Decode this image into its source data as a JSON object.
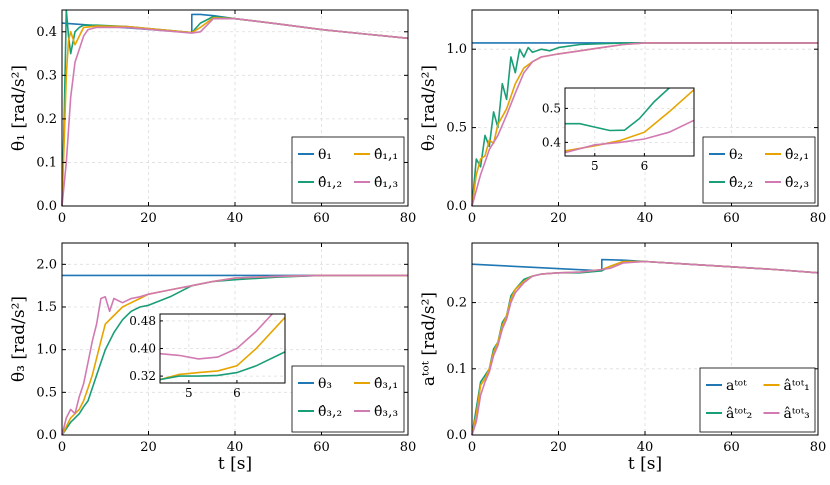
{
  "colors": {
    "blue": "#1f77b4",
    "green": "#1a9e77",
    "orange": "#e7a400",
    "pink": "#d17ab2"
  },
  "chart_data": [
    {
      "id": "p1",
      "type": "line",
      "ylabel": "θ₁ [rad/s²]",
      "xlabel": "",
      "xlim": [
        0,
        80
      ],
      "ylim": [
        0,
        0.45
      ],
      "xticks": [
        0,
        20,
        40,
        60,
        80
      ],
      "xtick_labels": [
        "0",
        "20",
        "40",
        "60",
        "80"
      ],
      "yticks": [
        0,
        0.1,
        0.2,
        0.3,
        0.4
      ],
      "ytick_labels": [
        "0.0",
        "0.1",
        "0.2",
        "0.3",
        "0.4"
      ],
      "legend_position": "bottom-right",
      "legend": [
        "θ₁",
        "θ̂₁,₁",
        "θ̂₁,₂",
        "θ̂₁,₃"
      ],
      "series": [
        {
          "name": "θ₁",
          "color": "blue",
          "x": [
            0,
            30,
            30,
            32,
            35,
            40,
            50,
            60,
            70,
            80
          ],
          "y": [
            0.42,
            0.398,
            0.44,
            0.44,
            0.437,
            0.43,
            0.418,
            0.405,
            0.395,
            0.385
          ]
        },
        {
          "name": "θ̂₁,₂",
          "color": "green",
          "x": [
            0,
            0.5,
            1,
            1.5,
            2,
            3,
            4,
            5,
            8,
            15,
            30,
            32,
            35,
            40,
            50,
            60,
            70,
            80
          ],
          "y": [
            0,
            0.2,
            0.45,
            0.39,
            0.35,
            0.4,
            0.41,
            0.415,
            0.415,
            0.412,
            0.398,
            0.42,
            0.435,
            0.43,
            0.418,
            0.405,
            0.395,
            0.385
          ]
        },
        {
          "name": "θ̂₁,₁",
          "color": "orange",
          "x": [
            0,
            0.5,
            1,
            1.5,
            2,
            3,
            4,
            5,
            8,
            15,
            30,
            32,
            35,
            40,
            50,
            60,
            70,
            80
          ],
          "y": [
            0,
            0.15,
            0.3,
            0.38,
            0.4,
            0.37,
            0.39,
            0.41,
            0.413,
            0.412,
            0.398,
            0.41,
            0.432,
            0.43,
            0.418,
            0.405,
            0.395,
            0.385
          ]
        },
        {
          "name": "θ̂₁,₃",
          "color": "pink",
          "x": [
            0,
            1,
            2,
            3,
            4,
            5,
            6,
            8,
            15,
            30,
            32,
            35,
            40,
            50,
            60,
            70,
            80
          ],
          "y": [
            0,
            0.1,
            0.25,
            0.33,
            0.36,
            0.39,
            0.405,
            0.41,
            0.41,
            0.397,
            0.4,
            0.43,
            0.43,
            0.418,
            0.405,
            0.395,
            0.385
          ]
        }
      ]
    },
    {
      "id": "p2",
      "type": "line",
      "ylabel": "θ₂ [rad/s²]",
      "xlabel": "",
      "xlim": [
        0,
        80
      ],
      "ylim": [
        0,
        1.25
      ],
      "xticks": [
        0,
        20,
        40,
        60,
        80
      ],
      "xtick_labels": [
        "0",
        "20",
        "40",
        "60",
        "80"
      ],
      "yticks": [
        0,
        0.5,
        1.0
      ],
      "ytick_labels": [
        "0.0",
        "0.5",
        "1.0"
      ],
      "legend_position": "bottom-right",
      "legend": [
        "θ₂",
        "θ̂₂,₁",
        "θ̂₂,₂",
        "θ̂₂,₃"
      ],
      "series": [
        {
          "name": "θ₂",
          "color": "blue",
          "x": [
            0,
            80
          ],
          "y": [
            1.04,
            1.04
          ]
        },
        {
          "name": "θ̂₂,₂",
          "color": "green",
          "x": [
            0,
            1,
            2,
            3,
            4,
            5,
            6,
            7,
            8,
            9,
            10,
            11,
            12,
            13,
            14,
            16,
            18,
            20,
            25,
            30,
            35,
            40,
            60,
            80
          ],
          "y": [
            0,
            0.3,
            0.25,
            0.45,
            0.38,
            0.6,
            0.5,
            0.78,
            0.68,
            0.95,
            0.85,
            1.0,
            0.95,
            1.01,
            0.98,
            1.0,
            0.99,
            1.01,
            1.03,
            1.035,
            1.04,
            1.04,
            1.04,
            1.04
          ]
        },
        {
          "name": "θ̂₂,₁",
          "color": "orange",
          "x": [
            0,
            1,
            2,
            3,
            4,
            5,
            6,
            8,
            10,
            12,
            14,
            16,
            20,
            25,
            30,
            35,
            40,
            60,
            80
          ],
          "y": [
            0,
            0.2,
            0.3,
            0.32,
            0.42,
            0.4,
            0.52,
            0.62,
            0.78,
            0.88,
            0.92,
            0.95,
            0.97,
            0.99,
            1.01,
            1.03,
            1.04,
            1.04,
            1.04
          ]
        },
        {
          "name": "θ̂₂,₃",
          "color": "pink",
          "x": [
            0,
            1,
            2,
            3,
            4,
            6,
            8,
            10,
            12,
            14,
            16,
            20,
            25,
            30,
            35,
            40,
            60,
            80
          ],
          "y": [
            0,
            0.1,
            0.2,
            0.28,
            0.36,
            0.45,
            0.58,
            0.72,
            0.85,
            0.92,
            0.95,
            0.97,
            0.99,
            1.01,
            1.03,
            1.04,
            1.04,
            1.04
          ]
        }
      ],
      "inset": {
        "xlim": [
          4.4,
          7.0
        ],
        "ylim": [
          0.36,
          0.56
        ],
        "xticks": [
          5,
          6
        ],
        "xtick_labels": [
          "5",
          "6"
        ],
        "yticks": [
          0.4,
          0.5
        ],
        "ytick_labels": [
          "0.4",
          "0.5"
        ],
        "series": [
          {
            "color": "green",
            "x": [
              4.4,
              4.7,
              5.0,
              5.3,
              5.6,
              5.9,
              6.2,
              6.5
            ],
            "y": [
              0.455,
              0.455,
              0.445,
              0.435,
              0.436,
              0.47,
              0.52,
              0.56
            ]
          },
          {
            "color": "orange",
            "x": [
              4.4,
              5.0,
              5.5,
              6.0,
              6.5,
              7.0
            ],
            "y": [
              0.375,
              0.39,
              0.405,
              0.43,
              0.49,
              0.555
            ]
          },
          {
            "color": "pink",
            "x": [
              4.4,
              5.0,
              5.5,
              6.0,
              6.5,
              7.0
            ],
            "y": [
              0.37,
              0.393,
              0.4,
              0.41,
              0.43,
              0.465
            ]
          }
        ]
      }
    },
    {
      "id": "p3",
      "type": "line",
      "ylabel": "θ₃ [rad/s²]",
      "xlabel": "t [s]",
      "xlim": [
        0,
        80
      ],
      "ylim": [
        0,
        2.25
      ],
      "xticks": [
        0,
        20,
        40,
        60,
        80
      ],
      "xtick_labels": [
        "0",
        "20",
        "40",
        "60",
        "80"
      ],
      "yticks": [
        0,
        0.5,
        1.0,
        1.5,
        2.0
      ],
      "ytick_labels": [
        "0.0",
        "0.5",
        "1.0",
        "1.5",
        "2.0"
      ],
      "legend_position": "bottom-right",
      "legend": [
        "θ₃",
        "θ̂₃,₁",
        "θ̂₃,₂",
        "θ̂₃,₃"
      ],
      "series": [
        {
          "name": "θ₃",
          "color": "blue",
          "x": [
            0,
            80
          ],
          "y": [
            1.87,
            1.87
          ]
        },
        {
          "name": "θ̂₃,₂",
          "color": "green",
          "x": [
            0,
            2,
            4,
            5,
            6,
            7,
            8,
            9,
            10,
            12,
            14,
            16,
            18,
            20,
            25,
            30,
            35,
            40,
            50,
            60,
            80
          ],
          "y": [
            0,
            0.15,
            0.25,
            0.33,
            0.4,
            0.55,
            0.7,
            0.85,
            1.0,
            1.2,
            1.35,
            1.45,
            1.5,
            1.52,
            1.62,
            1.75,
            1.8,
            1.82,
            1.85,
            1.87,
            1.87
          ]
        },
        {
          "name": "θ̂₃,₁",
          "color": "orange",
          "x": [
            0,
            2,
            4,
            5,
            6,
            7,
            8,
            9,
            10,
            12,
            14,
            16,
            18,
            20,
            25,
            30,
            35,
            40,
            50,
            60,
            80
          ],
          "y": [
            0,
            0.2,
            0.3,
            0.4,
            0.55,
            0.7,
            0.9,
            1.1,
            1.3,
            1.4,
            1.5,
            1.55,
            1.6,
            1.65,
            1.7,
            1.75,
            1.8,
            1.84,
            1.86,
            1.87,
            1.87
          ]
        },
        {
          "name": "θ̂₃,₃",
          "color": "pink",
          "x": [
            0,
            1,
            2,
            3,
            4,
            5,
            6,
            7,
            8,
            9,
            10,
            11,
            12,
            14,
            16,
            18,
            20,
            25,
            30,
            35,
            40,
            50,
            60,
            80
          ],
          "y": [
            0,
            0.2,
            0.3,
            0.25,
            0.45,
            0.6,
            0.85,
            1.1,
            1.3,
            1.6,
            1.62,
            1.45,
            1.6,
            1.55,
            1.6,
            1.62,
            1.65,
            1.7,
            1.75,
            1.8,
            1.84,
            1.86,
            1.87,
            1.87
          ]
        }
      ],
      "inset": {
        "xlim": [
          4.4,
          7.0
        ],
        "ylim": [
          0.3,
          0.5
        ],
        "xticks": [
          5,
          6
        ],
        "xtick_labels": [
          "5",
          "6"
        ],
        "yticks": [
          0.32,
          0.4,
          0.48
        ],
        "ytick_labels": [
          "0.32",
          "0.40",
          "0.48"
        ],
        "series": [
          {
            "color": "pink",
            "x": [
              4.4,
              4.8,
              5.2,
              5.6,
              6.0,
              6.4,
              6.8
            ],
            "y": [
              0.385,
              0.38,
              0.37,
              0.375,
              0.4,
              0.45,
              0.51
            ]
          },
          {
            "color": "orange",
            "x": [
              4.4,
              4.8,
              5.2,
              5.6,
              6.0,
              6.4,
              7.0
            ],
            "y": [
              0.31,
              0.325,
              0.33,
              0.335,
              0.35,
              0.4,
              0.49
            ]
          },
          {
            "color": "green",
            "x": [
              4.4,
              4.8,
              5.2,
              5.6,
              6.0,
              6.4,
              7.0
            ],
            "y": [
              0.31,
              0.32,
              0.32,
              0.322,
              0.33,
              0.35,
              0.39
            ]
          }
        ]
      }
    },
    {
      "id": "p4",
      "type": "line",
      "ylabel": "aᵗᵒᵗ [rad/s²]",
      "xlabel": "t [s]",
      "xlim": [
        0,
        80
      ],
      "ylim": [
        0,
        0.29
      ],
      "xticks": [
        0,
        20,
        40,
        60,
        80
      ],
      "xtick_labels": [
        "0",
        "20",
        "40",
        "60",
        "80"
      ],
      "yticks": [
        0,
        0.1,
        0.2
      ],
      "ytick_labels": [
        "0.0",
        "0.1",
        "0.2"
      ],
      "legend_position": "bottom-right",
      "legend": [
        "aᵗᵒᵗ",
        "âᵗᵒᵗ₁",
        "âᵗᵒᵗ₂",
        "âᵗᵒᵗ₃"
      ],
      "series": [
        {
          "name": "aᵗᵒᵗ",
          "color": "blue",
          "x": [
            0,
            30,
            30,
            35,
            40,
            50,
            60,
            70,
            80
          ],
          "y": [
            0.258,
            0.248,
            0.265,
            0.264,
            0.262,
            0.258,
            0.254,
            0.25,
            0.245
          ]
        },
        {
          "name": "âᵗᵒᵗ₂",
          "color": "green",
          "x": [
            0,
            1,
            2,
            3,
            4,
            5,
            6,
            7,
            8,
            9,
            10,
            12,
            14,
            16,
            20,
            25,
            30,
            32,
            35,
            40,
            50,
            60,
            70,
            80
          ],
          "y": [
            0,
            0.04,
            0.08,
            0.09,
            0.1,
            0.13,
            0.14,
            0.17,
            0.18,
            0.21,
            0.22,
            0.235,
            0.24,
            0.243,
            0.245,
            0.245,
            0.248,
            0.255,
            0.262,
            0.262,
            0.258,
            0.254,
            0.25,
            0.245
          ]
        },
        {
          "name": "âᵗᵒᵗ₁",
          "color": "orange",
          "x": [
            0,
            1,
            2,
            3,
            4,
            5,
            6,
            7,
            8,
            9,
            10,
            12,
            14,
            16,
            20,
            25,
            30,
            32,
            35,
            40,
            50,
            60,
            70,
            80
          ],
          "y": [
            0,
            0.03,
            0.075,
            0.085,
            0.1,
            0.125,
            0.14,
            0.165,
            0.18,
            0.205,
            0.22,
            0.232,
            0.24,
            0.243,
            0.245,
            0.246,
            0.25,
            0.255,
            0.262,
            0.262,
            0.258,
            0.254,
            0.25,
            0.245
          ]
        },
        {
          "name": "âᵗᵒᵗ₃",
          "color": "pink",
          "x": [
            0,
            1,
            2,
            3,
            4,
            5,
            6,
            7,
            8,
            9,
            10,
            12,
            14,
            16,
            20,
            25,
            30,
            32,
            35,
            40,
            50,
            60,
            70,
            80
          ],
          "y": [
            0,
            0.02,
            0.06,
            0.08,
            0.095,
            0.12,
            0.135,
            0.16,
            0.175,
            0.2,
            0.215,
            0.23,
            0.24,
            0.243,
            0.245,
            0.246,
            0.25,
            0.252,
            0.26,
            0.262,
            0.258,
            0.254,
            0.25,
            0.245
          ]
        }
      ]
    }
  ]
}
